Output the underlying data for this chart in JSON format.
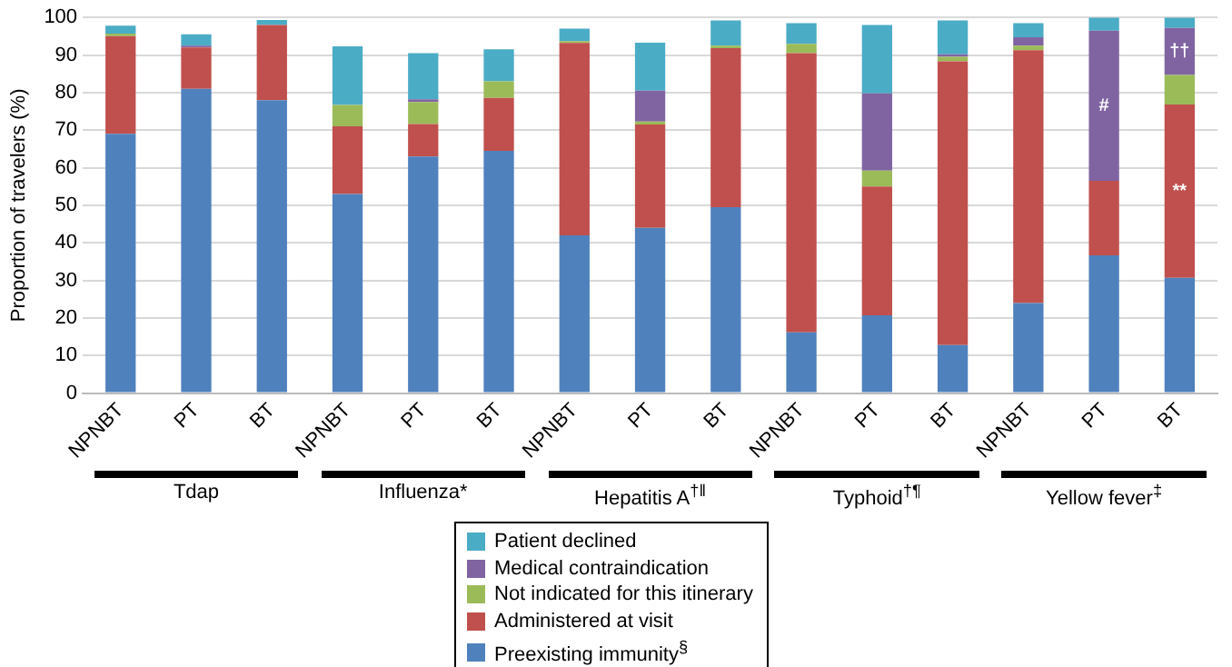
{
  "chart_data": {
    "type": "bar",
    "stacked": true,
    "ylabel": "Proportion of travelers (%)",
    "categories": [
      "NPNBT",
      "PT",
      "BT",
      "NPNBT",
      "PT",
      "BT",
      "NPNBT",
      "PT",
      "BT",
      "NPNBT",
      "PT",
      "BT",
      "NPNBT",
      "PT",
      "BT"
    ],
    "annotations": [
      "Tdap",
      "Influenza*",
      "Hepatitis A$^{†‖}$",
      "Typhoid$^{†¶}$",
      "Yellow fever$^{‡}$"
    ],
    "series": [
      {
        "name": "Preexisting immunity$^{§}$",
        "color": "#4f81bd",
        "values": [
          69,
          81,
          78,
          53,
          63,
          64.5,
          42,
          44,
          49.5,
          16.2,
          20.7,
          12.8,
          24,
          36.7,
          30.7
        ]
      },
      {
        "name": "Administered at visit",
        "color": "#c0504d",
        "values": [
          26,
          11,
          20,
          18,
          8.6,
          14.1,
          51.2,
          27.5,
          42.3,
          74.3,
          34.3,
          75.5,
          67.3,
          19.8,
          46.1
        ],
        "value_labels": [
          null,
          null,
          null,
          null,
          null,
          null,
          null,
          null,
          null,
          null,
          null,
          null,
          null,
          null,
          "**"
        ]
      },
      {
        "name": "Not indicated for this itinerary",
        "color": "#9bbb59",
        "values": [
          0.7,
          0,
          0,
          5.7,
          5.9,
          4.4,
          0.5,
          0.8,
          0.7,
          2.5,
          4.2,
          1.2,
          1.2,
          0,
          7.9
        ]
      },
      {
        "name": "Medical contraindication",
        "color": "#8064a2",
        "values": [
          0,
          0.5,
          0,
          0,
          0.7,
          0,
          0,
          8.2,
          0,
          0,
          20.6,
          0.7,
          2.2,
          40,
          12.5
        ],
        "value_labels": [
          null,
          null,
          null,
          null,
          null,
          null,
          null,
          null,
          null,
          null,
          null,
          null,
          null,
          "#",
          "††"
        ]
      },
      {
        "name": "Patient declined",
        "color": "#4bacc6",
        "values": [
          2.1,
          3,
          1.3,
          15.6,
          12.3,
          8.5,
          3.3,
          12.8,
          6.7,
          5.5,
          18.2,
          9,
          3.8,
          3.5,
          2.8
        ]
      }
    ],
    "ylim": [
      0,
      100
    ],
    "yticks": [
      0,
      10,
      20,
      30,
      40,
      50,
      60,
      70,
      80,
      90,
      100
    ],
    "grid": "y",
    "legend": "bottom"
  }
}
